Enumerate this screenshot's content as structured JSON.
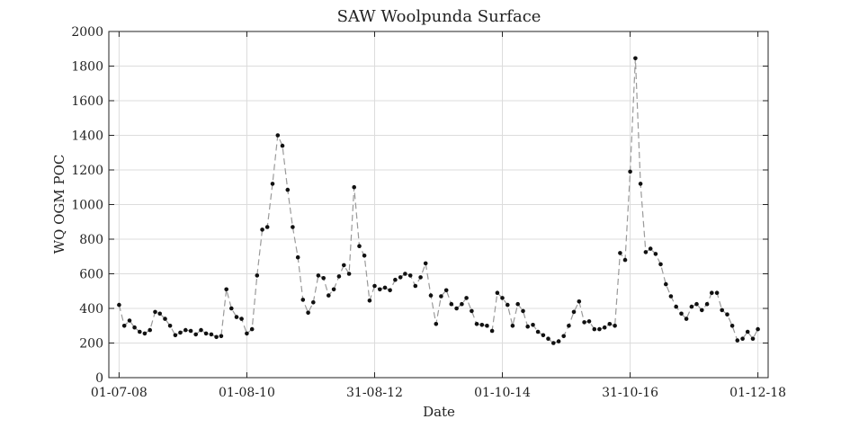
{
  "chart_data": {
    "type": "line",
    "title": "SAW Woolpunda Surface",
    "xlabel": "Date",
    "ylabel": "WQ OGM POC",
    "x_tick_labels": [
      "01-07-08",
      "01-08-10",
      "31-08-12",
      "01-10-14",
      "31-10-16",
      "01-12-18"
    ],
    "x_tick_dates": [
      "2008-07-01",
      "2010-08-01",
      "2012-08-31",
      "2014-10-01",
      "2016-10-31",
      "2018-12-01"
    ],
    "xlim": [
      "2008-05-01",
      "2019-01-31"
    ],
    "ylim": [
      0,
      2000
    ],
    "y_ticks": [
      0,
      200,
      400,
      600,
      800,
      1000,
      1200,
      1400,
      1600,
      1800,
      2000
    ],
    "grid": true,
    "series": [
      {
        "line_style": "dashed",
        "line_color": "#9a9a9a",
        "marker_color": "#111111",
        "x": [
          "2008-07-01",
          "2008-08-01",
          "2008-09-01",
          "2008-10-01",
          "2008-11-01",
          "2008-12-01",
          "2009-01-01",
          "2009-02-01",
          "2009-03-01",
          "2009-04-01",
          "2009-05-01",
          "2009-06-01",
          "2009-07-01",
          "2009-08-01",
          "2009-09-01",
          "2009-10-01",
          "2009-11-01",
          "2009-12-01",
          "2010-01-01",
          "2010-02-01",
          "2010-03-01",
          "2010-04-01",
          "2010-05-01",
          "2010-06-01",
          "2010-07-01",
          "2010-08-01",
          "2010-09-01",
          "2010-10-01",
          "2010-11-01",
          "2010-12-01",
          "2011-01-01",
          "2011-02-01",
          "2011-03-01",
          "2011-04-01",
          "2011-05-01",
          "2011-06-01",
          "2011-07-01",
          "2011-08-01",
          "2011-09-01",
          "2011-10-01",
          "2011-11-01",
          "2011-12-01",
          "2012-01-01",
          "2012-02-01",
          "2012-03-01",
          "2012-04-01",
          "2012-05-01",
          "2012-06-01",
          "2012-07-01",
          "2012-08-01",
          "2012-08-31",
          "2012-10-01",
          "2012-11-01",
          "2012-12-01",
          "2013-01-01",
          "2013-02-01",
          "2013-03-01",
          "2013-04-01",
          "2013-05-01",
          "2013-06-01",
          "2013-07-01",
          "2013-08-01",
          "2013-09-01",
          "2013-10-01",
          "2013-11-01",
          "2013-12-01",
          "2014-01-01",
          "2014-02-01",
          "2014-03-01",
          "2014-04-01",
          "2014-05-01",
          "2014-06-01",
          "2014-07-01",
          "2014-08-01",
          "2014-09-01",
          "2014-10-01",
          "2014-11-01",
          "2014-12-01",
          "2015-01-01",
          "2015-02-01",
          "2015-03-01",
          "2015-04-01",
          "2015-05-01",
          "2015-06-01",
          "2015-07-01",
          "2015-08-01",
          "2015-09-01",
          "2015-10-01",
          "2015-11-01",
          "2015-12-01",
          "2016-01-01",
          "2016-02-01",
          "2016-03-01",
          "2016-04-01",
          "2016-05-01",
          "2016-06-01",
          "2016-07-01",
          "2016-08-01",
          "2016-09-01",
          "2016-10-01",
          "2016-10-31",
          "2016-12-01",
          "2017-01-01",
          "2017-02-01",
          "2017-03-01",
          "2017-04-01",
          "2017-05-01",
          "2017-06-01",
          "2017-07-01",
          "2017-08-01",
          "2017-09-01",
          "2017-10-01",
          "2017-11-01",
          "2017-12-01",
          "2018-01-01",
          "2018-02-01",
          "2018-03-01",
          "2018-04-01",
          "2018-05-01",
          "2018-06-01",
          "2018-07-01",
          "2018-08-01",
          "2018-09-01",
          "2018-10-01",
          "2018-11-01",
          "2018-12-01"
        ],
        "y": [
          420,
          300,
          330,
          290,
          265,
          255,
          275,
          380,
          370,
          340,
          300,
          245,
          260,
          275,
          270,
          250,
          275,
          255,
          250,
          235,
          240,
          510,
          400,
          350,
          340,
          255,
          280,
          590,
          855,
          870,
          1120,
          1400,
          1340,
          1085,
          870,
          695,
          450,
          375,
          435,
          590,
          575,
          475,
          510,
          585,
          650,
          600,
          1100,
          760,
          705,
          445,
          530,
          510,
          520,
          505,
          565,
          580,
          600,
          590,
          530,
          580,
          660,
          475,
          310,
          470,
          505,
          425,
          400,
          425,
          460,
          385,
          310,
          305,
          300,
          270,
          490,
          460,
          420,
          300,
          425,
          385,
          295,
          305,
          265,
          245,
          225,
          200,
          210,
          240,
          300,
          380,
          440,
          320,
          325,
          280,
          280,
          290,
          310,
          300,
          720,
          680,
          1190,
          1845,
          1120,
          725,
          745,
          715,
          655,
          540,
          470,
          410,
          370,
          340,
          410,
          425,
          390,
          425,
          490,
          490,
          390,
          365,
          300,
          215,
          225,
          265,
          225,
          280
        ]
      }
    ]
  }
}
